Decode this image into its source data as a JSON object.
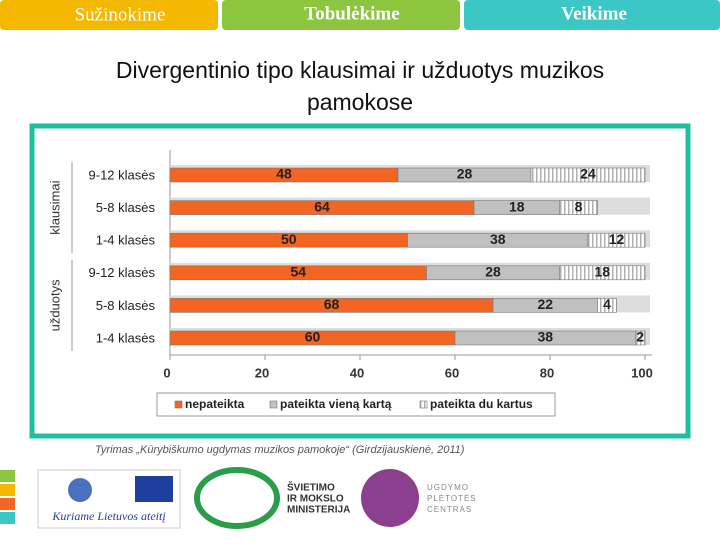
{
  "tabs": [
    "Sužinokime",
    "Tobulėkime",
    "Veikime"
  ],
  "chart_data": {
    "type": "bar",
    "orientation": "horizontal",
    "stacked": true,
    "title": "Divergentinio tipo klausimai ir užduotys muzikos pamokose",
    "groups": [
      "klausimai",
      "užduotys"
    ],
    "categories": [
      "9-12 klasės",
      "5-8 klasės",
      "1-4 klasės",
      "9-12 klasės",
      "5-8 klasės",
      "1-4 klasės"
    ],
    "series": [
      {
        "name": "nepateikta",
        "color": "#f26522",
        "values": [
          48,
          64,
          50,
          54,
          68,
          60
        ]
      },
      {
        "name": "pateikta vieną kartą",
        "color": "#c0c0c0",
        "values": [
          28,
          18,
          38,
          28,
          22,
          38
        ]
      },
      {
        "name": "pateikta du kartus",
        "color": "#ffffff",
        "hatch": true,
        "values": [
          24,
          8,
          12,
          18,
          4,
          2
        ]
      }
    ],
    "xlim": [
      0,
      100
    ],
    "xticks": [
      0,
      20,
      40,
      60,
      80,
      100
    ],
    "caption": "Tyrimas „Kūrybiškumo ugdymas muzikos pamokoje“ (Girdzijauskienė, 2011)"
  },
  "footer": {
    "slogan": "Kuriame Lietuvos ateitį",
    "ministry": [
      "ŠVIETIMO",
      "IR MOKSLO",
      "MINISTERIJA"
    ],
    "centre": [
      "UGDYMO",
      "PLĖTOTĖS",
      "CENTRAS"
    ]
  }
}
